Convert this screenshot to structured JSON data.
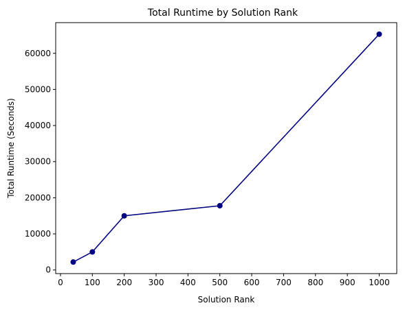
{
  "chart_data": {
    "type": "line",
    "title": "Total Runtime by Solution Rank",
    "xlabel": "Solution Rank",
    "ylabel": "Total Runtime (Seconds)",
    "xlim": [
      -15,
      1055
    ],
    "ylim": [
      -1000,
      68500
    ],
    "x_ticks": [
      0,
      100,
      200,
      300,
      400,
      500,
      600,
      700,
      800,
      900,
      1000
    ],
    "y_ticks": [
      0,
      10000,
      20000,
      30000,
      40000,
      50000,
      60000
    ],
    "grid": false,
    "series": [
      {
        "color": "#000080",
        "marker": "circle",
        "x": [
          40,
          100,
          200,
          500,
          1000
        ],
        "y": [
          2200,
          5000,
          15000,
          17800,
          65300
        ]
      }
    ]
  }
}
